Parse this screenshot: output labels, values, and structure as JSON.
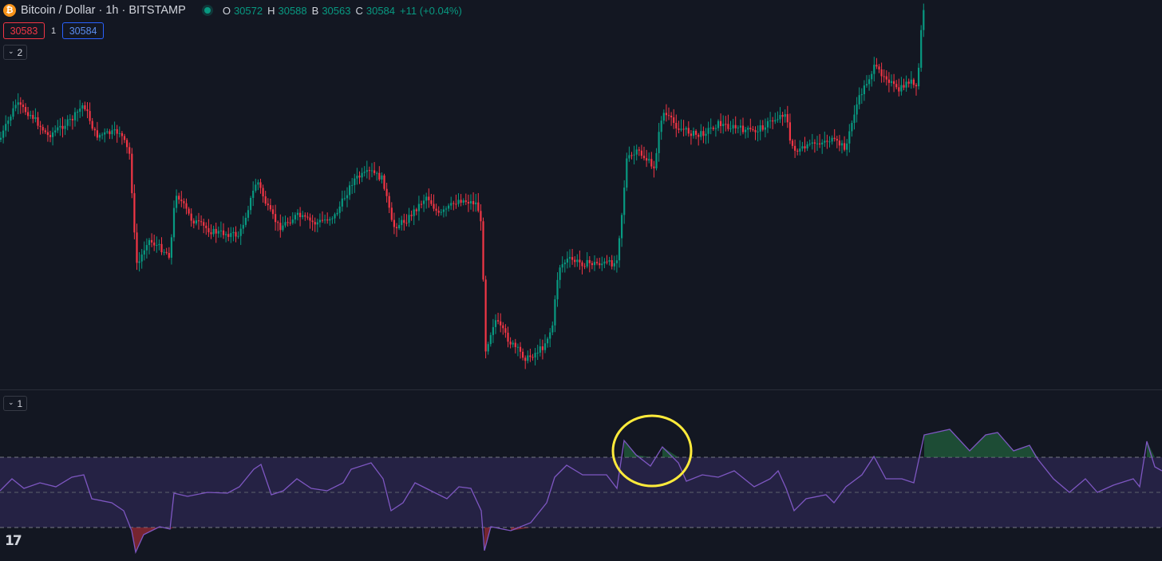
{
  "header": {
    "symbol_icon": "bitcoin-icon",
    "symbol_icon_glyph": "₿",
    "title": "Bitcoin / Dollar · 1h · BITSTAMP",
    "ohlc": [
      {
        "key": "O",
        "value": "30572"
      },
      {
        "key": "H",
        "value": "30588"
      },
      {
        "key": "B",
        "value": "30563"
      },
      {
        "key": "C",
        "value": "30584"
      }
    ],
    "change": "+11 (+0.04%)"
  },
  "trade": {
    "sell_price": "30583",
    "spread": "1",
    "buy_price": "30584"
  },
  "main_pane": {
    "collapse_label": "2"
  },
  "indicator_pane": {
    "collapse_label": "1"
  },
  "logo": {
    "text": "17",
    "icon": "tradingview-logo-icon"
  },
  "colors": {
    "background": "#131722",
    "up": "#089981",
    "down": "#f23645",
    "indicator_line": "#7e57c2",
    "indicator_band": "#2a2650",
    "highlight_circle": "#ffeb3b"
  }
}
